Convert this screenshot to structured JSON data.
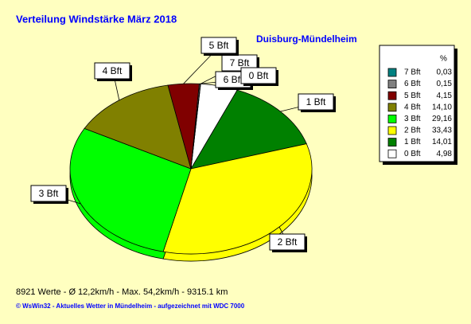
{
  "chart_data": {
    "type": "pie",
    "title": "Verteilung Windstärke  März 2018",
    "subtitle": "Duisburg-Mündelheim",
    "legend_header": "%",
    "footer": "8921 Werte   -   Ø 12,2km/h  -  Max. 54,2km/h  -   9315.1 km",
    "credit": "© WsWin32  -  Aktuelles Wetter in Mündelheim  -  aufgezeichnet mit WDC 7000",
    "legend": "right",
    "categories": [
      "7 Bft",
      "6 Bft",
      "5 Bft",
      "4 Bft",
      "3 Bft",
      "2 Bft",
      "1 Bft",
      "0 Bft"
    ],
    "values": [
      0.03,
      0.15,
      4.15,
      14.1,
      29.16,
      33.43,
      14.01,
      4.98
    ],
    "value_labels": [
      "0,03",
      "0,15",
      "4,15",
      "14,10",
      "29,16",
      "33,43",
      "14,01",
      "4,98"
    ],
    "colors": [
      "#008080",
      "#808080",
      "#800000",
      "#808000",
      "#00ff00",
      "#ffff00",
      "#008000",
      "#ffffff"
    ]
  }
}
